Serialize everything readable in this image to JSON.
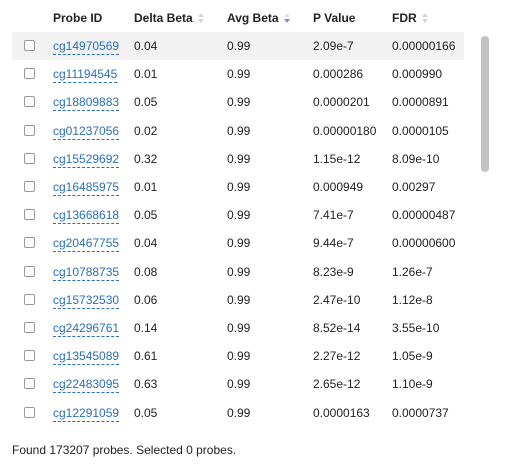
{
  "columns": {
    "probe_id": "Probe ID",
    "delta_beta": "Delta Beta",
    "avg_beta": "Avg Beta",
    "p_value": "P Value",
    "fdr": "FDR"
  },
  "sort": {
    "column": "avg_beta",
    "direction": "descending"
  },
  "rows": [
    {
      "probe": "cg14970569",
      "delta_beta": "0.04",
      "avg_beta": "0.99",
      "p_value": "2.09e-7",
      "fdr": "0.00000166"
    },
    {
      "probe": "cg11194545",
      "delta_beta": "0.01",
      "avg_beta": "0.99",
      "p_value": "0.000286",
      "fdr": "0.000990"
    },
    {
      "probe": "cg18809883",
      "delta_beta": "0.05",
      "avg_beta": "0.99",
      "p_value": "0.0000201",
      "fdr": "0.0000891"
    },
    {
      "probe": "cg01237056",
      "delta_beta": "0.02",
      "avg_beta": "0.99",
      "p_value": "0.00000180",
      "fdr": "0.0000105"
    },
    {
      "probe": "cg15529692",
      "delta_beta": "0.32",
      "avg_beta": "0.99",
      "p_value": "1.15e-12",
      "fdr": "8.09e-10"
    },
    {
      "probe": "cg16485975",
      "delta_beta": "0.01",
      "avg_beta": "0.99",
      "p_value": "0.000949",
      "fdr": "0.00297"
    },
    {
      "probe": "cg13668618",
      "delta_beta": "0.05",
      "avg_beta": "0.99",
      "p_value": "7.41e-7",
      "fdr": "0.00000487"
    },
    {
      "probe": "cg20467755",
      "delta_beta": "0.04",
      "avg_beta": "0.99",
      "p_value": "9.44e-7",
      "fdr": "0.00000600"
    },
    {
      "probe": "cg10788735",
      "delta_beta": "0.08",
      "avg_beta": "0.99",
      "p_value": "8.23e-9",
      "fdr": "1.26e-7"
    },
    {
      "probe": "cg15732530",
      "delta_beta": "0.06",
      "avg_beta": "0.99",
      "p_value": "2.47e-10",
      "fdr": "1.12e-8"
    },
    {
      "probe": "cg24296761",
      "delta_beta": "0.14",
      "avg_beta": "0.99",
      "p_value": "8.52e-14",
      "fdr": "3.55e-10"
    },
    {
      "probe": "cg13545089",
      "delta_beta": "0.61",
      "avg_beta": "0.99",
      "p_value": "2.27e-12",
      "fdr": "1.05e-9"
    },
    {
      "probe": "cg22483095",
      "delta_beta": "0.63",
      "avg_beta": "0.99",
      "p_value": "2.65e-12",
      "fdr": "1.10e-9"
    },
    {
      "probe": "cg12291059",
      "delta_beta": "0.05",
      "avg_beta": "0.99",
      "p_value": "0.0000163",
      "fdr": "0.0000737"
    }
  ],
  "footer": {
    "status": "Found 173207 probes. Selected 0 probes."
  },
  "colors": {
    "link": "#2a6fb8",
    "sort_active": "#6b8fd8",
    "row_hover": "#f2f2f2",
    "scroll_thumb": "#c1c1c1"
  }
}
